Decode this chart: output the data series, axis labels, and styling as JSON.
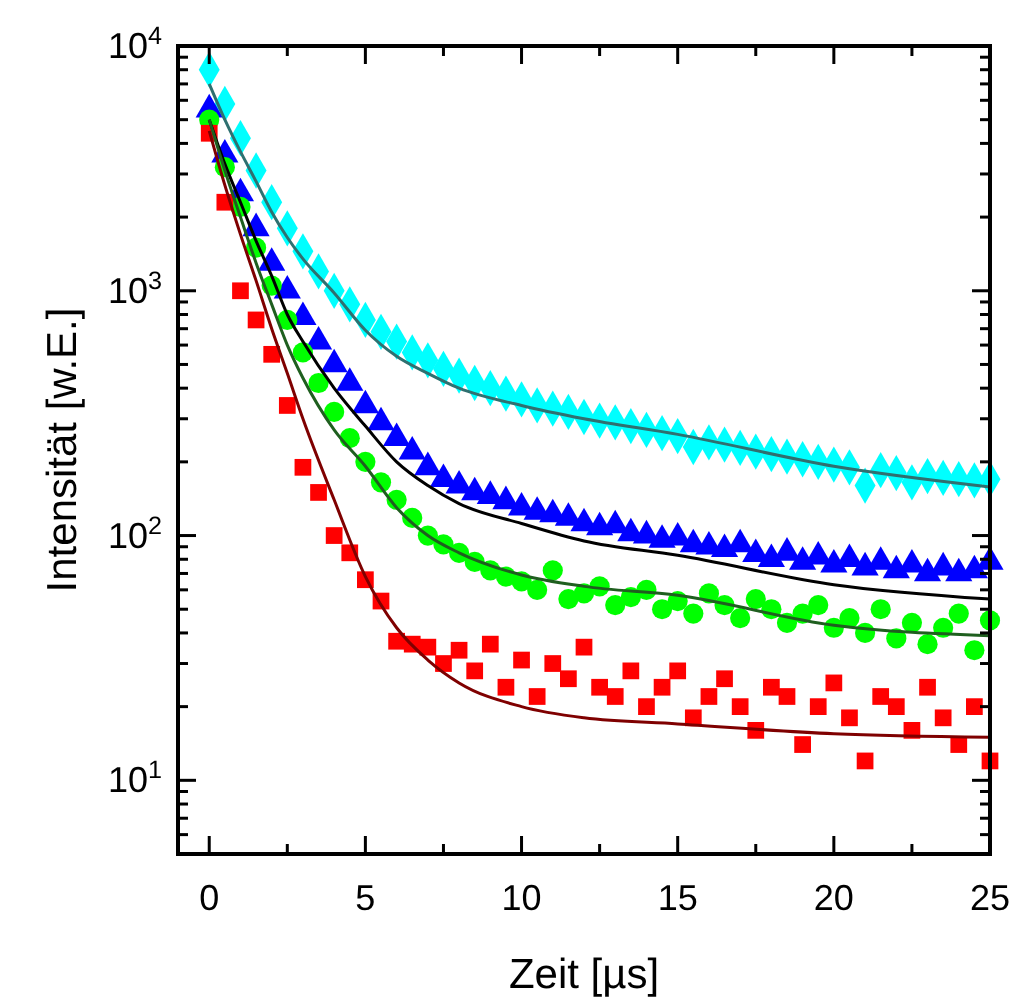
{
  "chart_data": {
    "type": "scatter",
    "xlabel": "Zeit [µs]",
    "ylabel": "Intensität [w.E.]",
    "log": "y",
    "grid": false,
    "xlim": [
      -1,
      25
    ],
    "ylim": [
      5,
      10000
    ],
    "xticks": [
      0,
      {
        "value": 2.5,
        "label": null
      },
      5,
      {
        "value": 7.5,
        "label": null
      },
      10,
      {
        "value": 12.5,
        "label": null
      },
      15,
      {
        "value": 17.5,
        "label": null
      },
      20,
      {
        "value": 22.5,
        "label": null
      },
      25
    ],
    "yticks": [
      {
        "value": 5,
        "label": null
      },
      {
        "value": 6,
        "label": null
      },
      {
        "value": 7,
        "label": null
      },
      {
        "value": 8,
        "label": null
      },
      {
        "value": 9,
        "label": null
      },
      {
        "value": 10,
        "label": "10$^{1}$"
      },
      {
        "value": 20,
        "label": null
      },
      {
        "value": 30,
        "label": null
      },
      {
        "value": 40,
        "label": null
      },
      {
        "value": 50,
        "label": null
      },
      {
        "value": 60,
        "label": null
      },
      {
        "value": 70,
        "label": null
      },
      {
        "value": 80,
        "label": null
      },
      {
        "value": 90,
        "label": null
      },
      {
        "value": 100,
        "label": "10$^{2}$"
      },
      {
        "value": 200,
        "label": null
      },
      {
        "value": 300,
        "label": null
      },
      {
        "value": 400,
        "label": null
      },
      {
        "value": 500,
        "label": null
      },
      {
        "value": 600,
        "label": null
      },
      {
        "value": 700,
        "label": null
      },
      {
        "value": 800,
        "label": null
      },
      {
        "value": 900,
        "label": null
      },
      {
        "value": 1000,
        "label": "10$^{3}$"
      },
      {
        "value": 2000,
        "label": null
      },
      {
        "value": 3000,
        "label": null
      },
      {
        "value": 4000,
        "label": null
      },
      {
        "value": 5000,
        "label": null
      },
      {
        "value": 6000,
        "label": null
      },
      {
        "value": 7000,
        "label": null
      },
      {
        "value": 8000,
        "label": null
      },
      {
        "value": 9000,
        "label": null
      },
      {
        "value": 10000,
        "label": "10$^{4}$"
      }
    ],
    "x": [
      0,
      0.5,
      1,
      1.5,
      2,
      2.5,
      3,
      3.5,
      4,
      4.5,
      5,
      5.5,
      6,
      6.5,
      7,
      7.5,
      8,
      8.5,
      9,
      9.5,
      10,
      10.5,
      11,
      11.5,
      12,
      12.5,
      13,
      13.5,
      14,
      14.5,
      15,
      15.5,
      16,
      16.5,
      17,
      17.5,
      18,
      18.5,
      19,
      19.5,
      20,
      20.5,
      21,
      21.5,
      22,
      22.5,
      23,
      23.5,
      24,
      24.5,
      25
    ],
    "series": [
      {
        "marker": "diamond",
        "color": "#00ffff",
        "values": [
          8000,
          5800,
          4200,
          3100,
          2300,
          1800,
          1450,
          1200,
          1000,
          880,
          760,
          680,
          620,
          560,
          520,
          480,
          450,
          420,
          400,
          380,
          360,
          340,
          330,
          320,
          305,
          295,
          290,
          280,
          270,
          262,
          255,
          230,
          240,
          235,
          228,
          220,
          215,
          210,
          205,
          200,
          195,
          190,
          160,
          185,
          180,
          165,
          175,
          172,
          170,
          168,
          170
        ]
      },
      {
        "marker": "triangle",
        "color": "#0000ff",
        "values": [
          5500,
          3600,
          2500,
          1800,
          1300,
          1000,
          780,
          620,
          500,
          420,
          340,
          290,
          250,
          220,
          190,
          170,
          160,
          150,
          145,
          138,
          130,
          125,
          122,
          118,
          112,
          108,
          110,
          102,
          100,
          96,
          98,
          92,
          90,
          88,
          92,
          84,
          80,
          85,
          78,
          82,
          76,
          80,
          74,
          78,
          72,
          76,
          70,
          74,
          70,
          72,
          78
        ]
      },
      {
        "marker": "circle",
        "color": "#00ff00",
        "values": [
          5000,
          3200,
          2200,
          1500,
          1050,
          760,
          560,
          420,
          320,
          250,
          200,
          165,
          140,
          118,
          100,
          92,
          85,
          78,
          72,
          68,
          65,
          60,
          72,
          55,
          58,
          62,
          52,
          56,
          60,
          50,
          54,
          48,
          58,
          52,
          46,
          55,
          50,
          44,
          48,
          52,
          42,
          46,
          40,
          50,
          38,
          44,
          36,
          42,
          48,
          34,
          45
        ]
      },
      {
        "marker": "square",
        "color": "#ff0000",
        "values": [
          4400,
          2300,
          1000,
          760,
          550,
          340,
          190,
          150,
          100,
          85,
          66,
          54,
          37,
          36,
          35,
          30,
          34,
          28,
          36,
          24,
          31,
          22,
          30,
          26,
          35,
          24,
          22,
          28,
          20,
          24,
          28,
          18,
          22,
          26,
          20,
          16,
          24,
          22,
          14,
          20,
          25,
          18,
          12,
          22,
          20,
          16,
          24,
          18,
          14,
          20,
          12
        ]
      },
      {
        "type": "line",
        "marker": "none",
        "color": "#2f7070",
        "x": [
          0,
          0.5,
          1,
          1.5,
          2,
          2.5,
          3,
          4,
          5,
          6,
          7,
          8,
          10,
          12,
          15,
          20,
          25
        ],
        "values": [
          7000,
          5000,
          3700,
          2800,
          2100,
          1650,
          1350,
          980,
          690,
          540,
          460,
          400,
          340,
          300,
          259,
          192,
          158
        ]
      },
      {
        "type": "line",
        "marker": "none",
        "color": "#000000",
        "x": [
          0,
          0.5,
          1,
          1.5,
          2,
          2.5,
          3,
          4,
          5,
          6,
          7,
          8,
          10,
          12,
          15,
          20,
          25
        ],
        "values": [
          5000,
          3300,
          2300,
          1600,
          1150,
          800,
          620,
          400,
          280,
          200,
          160,
          135,
          112,
          95,
          83,
          63,
          55
        ]
      },
      {
        "type": "line",
        "marker": "none",
        "color": "#1f5f1f",
        "x": [
          0,
          0.5,
          1,
          1.5,
          2,
          2.5,
          3,
          4,
          5,
          6,
          7,
          8,
          10,
          12,
          15,
          20,
          25
        ],
        "values": [
          5000,
          3100,
          2000,
          1300,
          880,
          600,
          440,
          270,
          192,
          130,
          100,
          85,
          69,
          62,
          57,
          43,
          39
        ]
      },
      {
        "type": "line",
        "marker": "none",
        "color": "#7f0000",
        "x": [
          0,
          0.5,
          1,
          1.5,
          2,
          2.5,
          3,
          4,
          5,
          6,
          7,
          8,
          10,
          12,
          15,
          20,
          25
        ],
        "values": [
          4500,
          2700,
          1700,
          1100,
          700,
          460,
          300,
          140,
          68,
          42,
          31,
          25,
          20,
          18,
          17,
          15.5,
          15
        ]
      }
    ]
  }
}
